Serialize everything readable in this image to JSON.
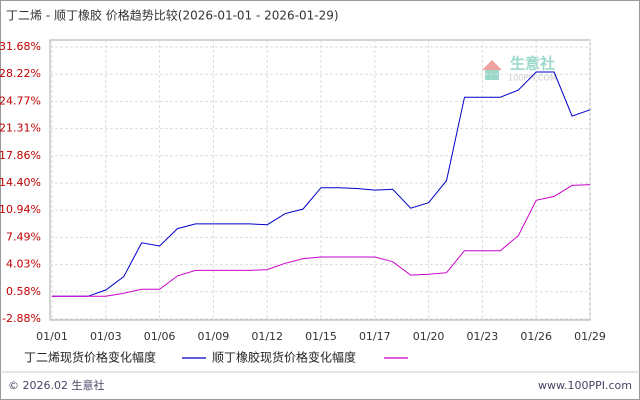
{
  "chart_data": {
    "type": "line",
    "title": "丁二烯 - 顺丁橡胶 价格趋势比较(2026-01-01 - 2026-01-29)",
    "categories": [
      "01/01",
      null,
      null,
      "01/03",
      null,
      null,
      "01/06",
      null,
      null,
      "01/09",
      null,
      null,
      "01/12",
      null,
      null,
      "01/15",
      null,
      null,
      "01/17",
      null,
      null,
      "01/20",
      null,
      null,
      "01/23",
      null,
      null,
      "01/26",
      null,
      null,
      "01/29"
    ],
    "series": [
      {
        "name": "丁二烯现货价格变化幅度",
        "color": "#0000cc",
        "values": [
          0,
          0,
          0,
          0.8,
          2.5,
          6.8,
          6.4,
          8.6,
          9.2,
          9.2,
          9.2,
          9.2,
          9.1,
          10.5,
          11.1,
          13.8,
          13.8,
          13.7,
          13.5,
          13.6,
          11.2,
          11.9,
          14.7,
          25.3,
          25.3,
          25.3,
          26.2,
          28.5,
          28.5,
          22.9,
          23.7
        ]
      },
      {
        "name": "顺丁橡胶现货价格变化幅度",
        "color": "#cc00cc",
        "values": [
          0,
          0,
          0,
          0,
          0.4,
          0.9,
          0.9,
          2.6,
          3.3,
          3.3,
          3.3,
          3.3,
          3.4,
          4.2,
          4.8,
          5.0,
          5.0,
          5.0,
          5.0,
          4.4,
          2.7,
          2.8,
          3.0,
          5.8,
          5.8,
          5.8,
          7.7,
          12.2,
          12.7,
          14.1,
          14.2
        ]
      }
    ],
    "ylim": [
      -2.88,
      31.68
    ],
    "yticks": [
      {
        "value": 31.68,
        "label": "31.68%"
      },
      {
        "value": 28.22,
        "label": "28.22%"
      },
      {
        "value": 24.77,
        "label": "24.77%"
      },
      {
        "value": 21.31,
        "label": "21.31%"
      },
      {
        "value": 17.86,
        "label": "17.86%"
      },
      {
        "value": 14.4,
        "label": "14.40%"
      },
      {
        "value": 10.94,
        "label": "10.94%"
      },
      {
        "value": 7.49,
        "label": "7.49%"
      },
      {
        "value": 4.03,
        "label": "4.03%"
      },
      {
        "value": 0.58,
        "label": "0.58%"
      },
      {
        "value": -2.88,
        "label": "-2.88%"
      }
    ],
    "grid": true,
    "watermark": {
      "name": "生意社",
      "site": "100PPI.COM"
    },
    "footer": {
      "left": "© 2026.02 生意社",
      "right": "www.100PPI.com"
    }
  }
}
